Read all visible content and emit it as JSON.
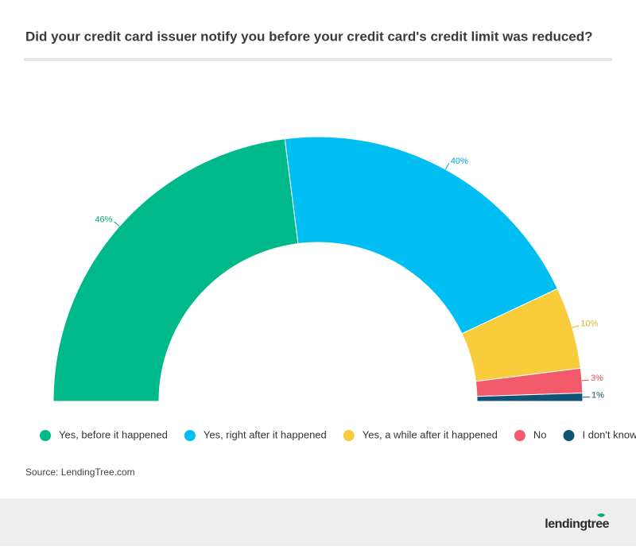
{
  "chart_data": {
    "type": "semi-donut",
    "title": "Did your credit card issuer notify you before your credit card's credit limit was reduced?",
    "categories": [
      "Yes, before it happened",
      "Yes, right after it happened",
      "Yes, a while after it happened",
      "No",
      "I don't know"
    ],
    "values": [
      46,
      40,
      10,
      3,
      1
    ],
    "value_labels": [
      "46%",
      "40%",
      "10%",
      "3%",
      "1%"
    ],
    "colors": [
      "#00b98a",
      "#00bef2",
      "#f9cc3c",
      "#f25a6b",
      "#0f5474"
    ],
    "label_colors": [
      "#00a87c",
      "#00a9d8",
      "#e0b42a",
      "#e14a5b",
      "#0f5474"
    ],
    "legend": true
  },
  "source": "Source: LendingTree.com",
  "footer": {
    "brand": "lendingtree"
  }
}
